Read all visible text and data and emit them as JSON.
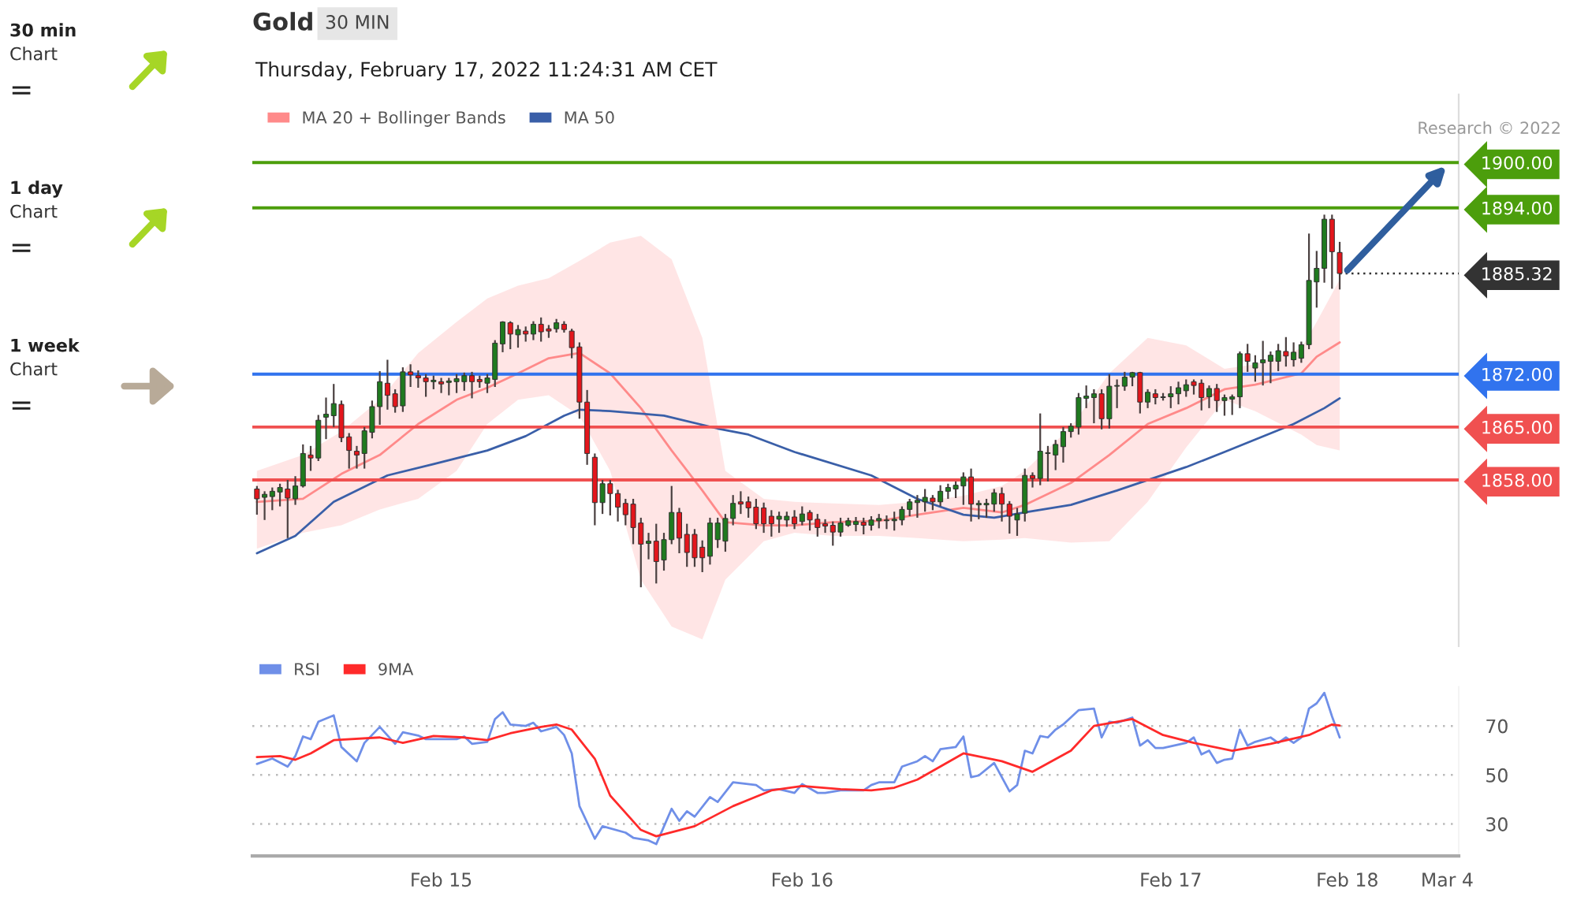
{
  "chart_data": [
    {
      "type": "candlestick",
      "title": "Gold",
      "subtitle": "Thursday, February 17, 2022 11:24:31 AM CET",
      "categories": [
        null,
        null,
        null,
        null,
        null,
        null,
        null,
        null,
        null,
        null,
        null,
        null,
        null,
        null,
        null,
        null,
        null,
        null,
        null,
        null,
        null,
        null,
        null,
        null,
        null,
        null,
        null,
        null,
        null,
        null,
        null,
        null,
        null,
        null,
        null,
        null,
        null,
        null,
        null,
        null,
        null,
        null,
        null,
        null,
        null,
        null,
        null,
        null,
        null,
        null,
        null,
        null,
        null,
        null,
        null,
        null,
        null,
        null,
        null,
        null,
        null,
        null,
        null,
        null,
        null,
        null,
        null,
        null,
        null,
        null,
        null,
        null,
        null,
        null,
        null,
        null,
        null,
        null,
        null,
        null,
        null,
        null,
        null,
        null,
        null,
        null,
        null,
        null,
        null,
        null,
        null,
        null,
        null,
        null,
        null,
        null,
        null,
        null,
        null,
        null,
        null,
        null,
        null,
        null,
        null,
        null,
        null,
        null,
        null,
        null,
        null,
        null,
        null,
        null,
        null,
        null,
        null,
        null,
        null,
        null,
        null,
        null,
        null,
        null,
        null,
        null,
        null,
        null,
        null,
        null,
        null,
        null,
        null,
        null,
        null,
        null,
        null,
        null,
        null,
        null,
        null,
        null,
        null,
        null,
        null,
        null,
        null,
        null,
        null,
        null,
        null,
        null,
        null,
        null,
        null,
        null,
        null
      ],
      "ohlc": [
        [
          1856.8,
          1857.2,
          1853.4,
          1855.5
        ],
        [
          1855.7,
          1856.5,
          1852.7,
          1856.1
        ],
        [
          1855.8,
          1857.0,
          1854.0,
          1856.5
        ],
        [
          1856.4,
          1857.5,
          1854.5,
          1857.0
        ],
        [
          1856.8,
          1858.0,
          1850.3,
          1855.6
        ],
        [
          1855.5,
          1858.5,
          1854.7,
          1857.2
        ],
        [
          1857.2,
          1862.7,
          1857.0,
          1861.5
        ],
        [
          1861.3,
          1862.5,
          1859.2,
          1860.9
        ],
        [
          1860.9,
          1866.6,
          1860.5,
          1865.9
        ],
        [
          1866.3,
          1868.9,
          1863.4,
          1866.7
        ],
        [
          1866.5,
          1870.7,
          1865.0,
          1868.1
        ],
        [
          1868.0,
          1868.5,
          1863.0,
          1863.6
        ],
        [
          1863.7,
          1864.2,
          1859.5,
          1861.9
        ],
        [
          1861.8,
          1862.5,
          1859.5,
          1861.3
        ],
        [
          1861.5,
          1865.0,
          1859.5,
          1864.5
        ],
        [
          1864.3,
          1868.5,
          1863.5,
          1867.7
        ],
        [
          1867.7,
          1872.4,
          1865.3,
          1871.0
        ],
        [
          1870.8,
          1873.9,
          1867.3,
          1869.2
        ],
        [
          1869.4,
          1870.0,
          1866.9,
          1867.7
        ],
        [
          1867.8,
          1872.9,
          1867.0,
          1872.3
        ],
        [
          1872.3,
          1873.3,
          1870.3,
          1871.9
        ],
        [
          1871.8,
          1872.5,
          1870.2,
          1871.5
        ],
        [
          1871.5,
          1872.0,
          1869.0,
          1871.0
        ],
        [
          1871.0,
          1871.8,
          1870.0,
          1871.2
        ],
        [
          1871.0,
          1871.5,
          1869.5,
          1870.7
        ],
        [
          1870.9,
          1871.5,
          1869.2,
          1871.1
        ],
        [
          1871.0,
          1872.0,
          1869.5,
          1871.4
        ],
        [
          1871.0,
          1872.2,
          1869.8,
          1871.8
        ],
        [
          1871.8,
          1872.3,
          1868.8,
          1871.0
        ],
        [
          1871.3,
          1871.8,
          1870.2,
          1871.0
        ],
        [
          1870.8,
          1872.0,
          1869.5,
          1871.5
        ],
        [
          1871.3,
          1876.5,
          1870.3,
          1876.1
        ],
        [
          1876.0,
          1879.0,
          1874.9,
          1878.9
        ],
        [
          1878.8,
          1879.0,
          1875.3,
          1877.3
        ],
        [
          1877.2,
          1878.5,
          1875.5,
          1877.9
        ],
        [
          1877.7,
          1878.3,
          1876.3,
          1877.3
        ],
        [
          1877.3,
          1879.0,
          1876.5,
          1878.6
        ],
        [
          1878.6,
          1879.5,
          1876.3,
          1877.6
        ],
        [
          1878.0,
          1878.5,
          1876.8,
          1877.7
        ],
        [
          1878.0,
          1879.3,
          1877.5,
          1878.8
        ],
        [
          1878.6,
          1879.0,
          1877.5,
          1877.9
        ],
        [
          1877.7,
          1878.0,
          1874.1,
          1875.5
        ],
        [
          1875.6,
          1876.2,
          1866.1,
          1868.3
        ],
        [
          1868.3,
          1869.9,
          1860.0,
          1861.5
        ],
        [
          1861.0,
          1861.5,
          1852.0,
          1855.0
        ],
        [
          1855.0,
          1858.0,
          1853.5,
          1857.5
        ],
        [
          1857.5,
          1858.0,
          1853.3,
          1856.2
        ],
        [
          1856.2,
          1856.7,
          1852.5,
          1854.4
        ],
        [
          1854.9,
          1855.5,
          1852.0,
          1853.4
        ],
        [
          1854.8,
          1855.5,
          1849.5,
          1851.7
        ],
        [
          1852.3,
          1853.0,
          1843.8,
          1849.5
        ],
        [
          1849.6,
          1851.0,
          1847.5,
          1849.9
        ],
        [
          1849.9,
          1852.2,
          1844.3,
          1847.2
        ],
        [
          1847.4,
          1851.0,
          1846.0,
          1850.1
        ],
        [
          1850.1,
          1857.2,
          1849.5,
          1853.7
        ],
        [
          1853.7,
          1854.3,
          1848.3,
          1850.3
        ],
        [
          1850.8,
          1852.2,
          1846.5,
          1848.4
        ],
        [
          1850.8,
          1851.5,
          1846.5,
          1847.7
        ],
        [
          1849.1,
          1850.0,
          1845.8,
          1847.7
        ],
        [
          1847.9,
          1853.0,
          1846.8,
          1852.3
        ],
        [
          1850.1,
          1853.0,
          1849.0,
          1852.3
        ],
        [
          1849.9,
          1853.5,
          1848.5,
          1852.9
        ],
        [
          1852.9,
          1856.0,
          1852.0,
          1854.9
        ],
        [
          1855.1,
          1856.5,
          1853.5,
          1854.8
        ],
        [
          1855.1,
          1855.8,
          1853.0,
          1854.3
        ],
        [
          1854.4,
          1855.5,
          1851.5,
          1852.2
        ],
        [
          1854.3,
          1855.0,
          1851.0,
          1852.2
        ],
        [
          1853.2,
          1854.0,
          1850.5,
          1852.2
        ],
        [
          1852.8,
          1853.8,
          1851.0,
          1853.2
        ],
        [
          1852.7,
          1853.8,
          1851.8,
          1853.2
        ],
        [
          1853.1,
          1854.0,
          1851.5,
          1852.2
        ],
        [
          1852.5,
          1854.5,
          1852.0,
          1853.5
        ],
        [
          1853.7,
          1854.0,
          1851.3,
          1852.7
        ],
        [
          1852.8,
          1853.5,
          1850.5,
          1851.7
        ],
        [
          1852.2,
          1852.8,
          1851.0,
          1851.9
        ],
        [
          1852.0,
          1852.5,
          1849.3,
          1851.1
        ],
        [
          1851.1,
          1853.0,
          1850.5,
          1852.3
        ],
        [
          1852.0,
          1853.0,
          1851.8,
          1852.6
        ],
        [
          1852.1,
          1853.1,
          1851.2,
          1852.5
        ],
        [
          1852.4,
          1853.0,
          1850.8,
          1852.0
        ],
        [
          1852.0,
          1853.2,
          1851.3,
          1852.7
        ],
        [
          1852.6,
          1853.5,
          1851.6,
          1852.9
        ],
        [
          1852.6,
          1853.3,
          1851.5,
          1852.7
        ],
        [
          1852.6,
          1853.8,
          1851.3,
          1852.8
        ],
        [
          1852.7,
          1854.5,
          1852.0,
          1854.1
        ],
        [
          1854.1,
          1855.5,
          1853.2,
          1855.1
        ],
        [
          1855.0,
          1856.0,
          1853.0,
          1855.3
        ],
        [
          1855.1,
          1856.8,
          1853.8,
          1855.7
        ],
        [
          1855.6,
          1856.0,
          1854.0,
          1855.1
        ],
        [
          1855.1,
          1857.3,
          1854.5,
          1856.5
        ],
        [
          1856.5,
          1857.5,
          1855.5,
          1857.0
        ],
        [
          1856.8,
          1857.8,
          1855.6,
          1857.3
        ],
        [
          1857.2,
          1859.0,
          1854.7,
          1858.4
        ],
        [
          1858.4,
          1859.5,
          1852.5,
          1854.8
        ],
        [
          1854.7,
          1855.3,
          1852.8,
          1854.9
        ],
        [
          1854.7,
          1855.5,
          1853.0,
          1854.9
        ],
        [
          1854.8,
          1856.8,
          1853.8,
          1856.3
        ],
        [
          1856.2,
          1857.0,
          1852.5,
          1854.8
        ],
        [
          1854.8,
          1855.2,
          1850.9,
          1853.2
        ],
        [
          1852.7,
          1854.3,
          1850.6,
          1853.5
        ],
        [
          1853.6,
          1859.5,
          1852.5,
          1858.6
        ],
        [
          1858.6,
          1859.0,
          1857.0,
          1858.2
        ],
        [
          1858.2,
          1866.8,
          1857.3,
          1861.8
        ],
        [
          1861.5,
          1862.5,
          1857.8,
          1861.6
        ],
        [
          1861.3,
          1863.3,
          1859.3,
          1862.7
        ],
        [
          1862.4,
          1865.0,
          1860.3,
          1864.4
        ],
        [
          1864.4,
          1865.5,
          1863.6,
          1865.1
        ],
        [
          1865.0,
          1869.5,
          1864.0,
          1868.9
        ],
        [
          1868.8,
          1870.5,
          1867.5,
          1869.1
        ],
        [
          1868.9,
          1870.0,
          1865.5,
          1869.4
        ],
        [
          1869.4,
          1870.0,
          1864.7,
          1866.1
        ],
        [
          1866.1,
          1872.0,
          1864.8,
          1870.4
        ],
        [
          1870.4,
          1871.3,
          1867.5,
          1870.5
        ],
        [
          1870.4,
          1872.3,
          1869.8,
          1871.6
        ],
        [
          1871.6,
          1872.3,
          1870.4,
          1872.2
        ],
        [
          1872.2,
          1872.3,
          1866.8,
          1868.3
        ],
        [
          1868.3,
          1870.0,
          1867.5,
          1869.6
        ],
        [
          1869.4,
          1870.0,
          1868.0,
          1868.9
        ],
        [
          1868.9,
          1869.5,
          1868.5,
          1869.0
        ],
        [
          1869.0,
          1870.4,
          1867.5,
          1869.4
        ],
        [
          1869.4,
          1871.0,
          1868.0,
          1870.2
        ],
        [
          1869.8,
          1871.3,
          1869.0,
          1870.6
        ],
        [
          1871.0,
          1871.3,
          1869.3,
          1870.5
        ],
        [
          1870.8,
          1871.3,
          1867.2,
          1868.9
        ],
        [
          1869.0,
          1870.5,
          1867.5,
          1870.1
        ],
        [
          1870.1,
          1870.7,
          1867.0,
          1868.5
        ],
        [
          1868.5,
          1869.3,
          1866.5,
          1868.9
        ],
        [
          1868.7,
          1869.3,
          1866.6,
          1869.0
        ],
        [
          1869.0,
          1875.0,
          1867.5,
          1874.7
        ],
        [
          1874.7,
          1876.0,
          1872.3,
          1873.7
        ],
        [
          1872.8,
          1874.5,
          1871.0,
          1873.5
        ],
        [
          1873.5,
          1876.4,
          1870.5,
          1873.9
        ],
        [
          1873.7,
          1875.0,
          1870.8,
          1874.5
        ],
        [
          1873.7,
          1876.0,
          1872.4,
          1875.1
        ],
        [
          1875.0,
          1876.9,
          1873.0,
          1874.4
        ],
        [
          1873.9,
          1876.2,
          1873.0,
          1874.9
        ],
        [
          1874.1,
          1876.3,
          1873.5,
          1875.9
        ],
        [
          1875.9,
          1890.6,
          1875.3,
          1884.4
        ],
        [
          1884.2,
          1888.3,
          1880.8,
          1886.0
        ],
        [
          1886.0,
          1893.1,
          1884.1,
          1892.5
        ],
        [
          1892.5,
          1893.1,
          1883.3,
          1888.2
        ],
        [
          1888.1,
          1889.5,
          1883.2,
          1885.32
        ],
        null,
        null,
        null,
        null,
        null,
        null,
        null,
        null,
        null,
        null,
        null,
        null,
        null,
        null,
        null
      ],
      "series": [
        {
          "name": "MA 20 + Bollinger Bands",
          "type": "line",
          "color": "#ff8a8a",
          "values": [
            1855.1,
            null,
            null,
            null,
            null,
            null,
            1855.5,
            null,
            null,
            null,
            null,
            1858.8,
            null,
            null,
            null,
            null,
            1861.3,
            null,
            null,
            null,
            null,
            1865.4,
            null,
            null,
            null,
            null,
            1868.6,
            null,
            null,
            null,
            1870.2,
            null,
            null,
            null,
            1872.1,
            null,
            null,
            null,
            1874.1,
            null,
            null,
            null,
            1874.8,
            null,
            null,
            null,
            1872.1,
            null,
            null,
            null,
            1867.5,
            null,
            null,
            null,
            1861.9,
            null,
            null,
            null,
            1856.6,
            null,
            null,
            1852.4,
            null,
            null,
            null,
            null,
            1852.0,
            null,
            null,
            null,
            1852.0,
            null,
            null,
            null,
            null,
            1852.4,
            null,
            null,
            null,
            null,
            null,
            1852.6,
            null,
            null,
            null,
            null,
            1853.4,
            null,
            null,
            null,
            null,
            null,
            1854.3,
            null,
            null,
            null,
            null,
            1853.7,
            null,
            null,
            1854.7,
            null,
            null,
            null,
            null,
            null,
            1857.6,
            null,
            null,
            null,
            null,
            1861.3,
            null,
            null,
            null,
            null,
            1865.4,
            null,
            null,
            null,
            null,
            1867.5,
            null,
            null,
            null,
            null,
            1870.0,
            null,
            null,
            null,
            1870.6,
            null,
            null,
            null,
            null,
            null,
            1872.1,
            null,
            1874.3,
            null,
            null,
            1876.2,
            null,
            null,
            null,
            null,
            null,
            null,
            null,
            null,
            null,
            null,
            null,
            null,
            null,
            null,
            null
          ],
          "upper": [
            1859.2,
            null,
            null,
            null,
            null,
            null,
            1861.3,
            null,
            null,
            null,
            null,
            1864.4,
            null,
            null,
            null,
            null,
            1868.6,
            null,
            null,
            null,
            null,
            1874.8,
            null,
            null,
            null,
            null,
            1878.9,
            null,
            null,
            null,
            1882.0,
            null,
            null,
            null,
            1883.7,
            null,
            null,
            null,
            1884.7,
            null,
            null,
            null,
            1887.0,
            null,
            null,
            null,
            1889.4,
            null,
            null,
            null,
            1890.3,
            null,
            null,
            null,
            1887.2,
            null,
            null,
            null,
            1876.8,
            null,
            null,
            1859.2,
            null,
            null,
            null,
            null,
            1855.5,
            null,
            null,
            null,
            1855.1,
            null,
            null,
            null,
            null,
            1854.9,
            null,
            null,
            null,
            null,
            null,
            1854.7,
            null,
            null,
            null,
            null,
            1855.1,
            null,
            null,
            null,
            null,
            null,
            1855.9,
            null,
            null,
            null,
            null,
            1857.2,
            null,
            null,
            1859.2,
            null,
            null,
            null,
            null,
            null,
            1865.0,
            null,
            null,
            null,
            null,
            1872.1,
            null,
            null,
            null,
            null,
            1876.8,
            null,
            null,
            null,
            null,
            1875.8,
            null,
            null,
            null,
            null,
            1872.7,
            null,
            null,
            null,
            1873.3,
            null,
            null,
            null,
            null,
            null,
            1875.4,
            null,
            1878.9,
            null,
            null,
            1884.5,
            null,
            null,
            null,
            null,
            null,
            null,
            null,
            null,
            null,
            null,
            null,
            null,
            null,
            null,
            null
          ],
          "lower": [
            1848.9,
            null,
            null,
            null,
            null,
            null,
            1851.0,
            null,
            null,
            null,
            null,
            1852.0,
            null,
            null,
            null,
            null,
            1854.1,
            null,
            null,
            null,
            null,
            1855.5,
            null,
            null,
            null,
            null,
            1859.2,
            null,
            null,
            null,
            1865.4,
            null,
            null,
            null,
            1868.6,
            null,
            null,
            null,
            1869.2,
            null,
            null,
            null,
            1866.5,
            null,
            null,
            null,
            1859.2,
            null,
            null,
            null,
            1844.8,
            null,
            null,
            null,
            1838.6,
            null,
            null,
            null,
            1836.9,
            null,
            null,
            1844.8,
            null,
            null,
            null,
            null,
            1849.9,
            null,
            null,
            null,
            1851.0,
            null,
            null,
            null,
            null,
            1850.6,
            null,
            null,
            null,
            null,
            null,
            1850.6,
            null,
            null,
            null,
            null,
            1850.3,
            null,
            null,
            null,
            null,
            null,
            1849.9,
            null,
            null,
            null,
            null,
            1850.1,
            null,
            null,
            1850.3,
            null,
            null,
            null,
            null,
            null,
            1849.7,
            null,
            null,
            null,
            null,
            1849.9,
            null,
            null,
            null,
            null,
            1855.1,
            null,
            null,
            null,
            null,
            1862.3,
            null,
            null,
            null,
            null,
            1868.6,
            null,
            null,
            null,
            1867.1,
            null,
            null,
            null,
            null,
            null,
            1864.0,
            null,
            1862.6,
            null,
            null,
            1861.9,
            null,
            null,
            null,
            null,
            null,
            null,
            null,
            null,
            null,
            null,
            null,
            null,
            null,
            null,
            null
          ]
        },
        {
          "name": "MA 50",
          "type": "line",
          "color": "#3a5fa8",
          "values": [
            1848.3,
            null,
            null,
            null,
            null,
            1850.6,
            null,
            null,
            null,
            null,
            1855.1,
            null,
            null,
            null,
            null,
            null,
            null,
            1858.6,
            null,
            null,
            null,
            null,
            null,
            1860.1,
            null,
            null,
            null,
            null,
            null,
            null,
            1861.9,
            null,
            null,
            null,
            null,
            1863.8,
            null,
            null,
            null,
            null,
            1866.5,
            null,
            1867.3,
            null,
            null,
            null,
            1867.1,
            null,
            null,
            null,
            null,
            null,
            null,
            1866.5,
            null,
            null,
            null,
            null,
            null,
            null,
            1864.8,
            null,
            null,
            null,
            1864.0,
            null,
            null,
            null,
            null,
            null,
            1861.7,
            null,
            null,
            null,
            null,
            null,
            null,
            null,
            null,
            null,
            1858.6,
            null,
            null,
            null,
            null,
            null,
            1855.5,
            null,
            null,
            null,
            null,
            null,
            1853.4,
            null,
            null,
            null,
            1853.0,
            null,
            null,
            null,
            1853.7,
            null,
            null,
            null,
            null,
            null,
            1854.7,
            null,
            null,
            null,
            null,
            null,
            1856.6,
            null,
            null,
            null,
            null,
            null,
            null,
            null,
            null,
            1859.7,
            null,
            null,
            null,
            null,
            1861.7,
            null,
            null,
            null,
            null,
            null,
            null,
            null,
            null,
            1865.4,
            null,
            null,
            null,
            1867.5,
            null,
            1868.8,
            null,
            null,
            null,
            null,
            null,
            null,
            null,
            null,
            null,
            null,
            null,
            null,
            null,
            null,
            null
          ]
        }
      ],
      "ylim": [
        1836,
        1909
      ],
      "tick_labels": "y",
      "legend": "top left",
      "yticks": [
        {
          "value": 1858,
          "label": "1858.00"
        },
        {
          "value": 1865,
          "label": "1865.00"
        },
        {
          "value": 1872,
          "label": "1872.00"
        },
        {
          "value": 1885.32,
          "label": "1885.32"
        },
        {
          "value": 1894,
          "label": "1894.00"
        },
        {
          "value": 1900,
          "label": "1900.00"
        }
      ],
      "ref_lines": [
        {
          "axis": "y",
          "value": 1900,
          "color": "#4c9e0c"
        },
        {
          "axis": "y",
          "value": 1894,
          "color": "#4c9e0c"
        },
        {
          "axis": "y",
          "value": 1872,
          "color": "#3173ee"
        },
        {
          "axis": "y",
          "value": 1865,
          "color": "#f05050"
        },
        {
          "axis": "y",
          "value": 1858,
          "color": "#f05050"
        },
        {
          "axis": "y",
          "value": 1885.32,
          "color": "#333333",
          "line_style": "dotted"
        }
      ],
      "annotations": [
        "30 MIN",
        "Research © 2022"
      ]
    },
    {
      "type": "line",
      "categories": [
        null,
        null,
        null,
        null,
        null,
        null,
        null,
        null,
        null,
        null,
        null,
        null,
        null,
        null,
        null,
        null,
        null,
        null,
        null,
        null,
        null,
        null,
        null,
        null,
        "Feb 15",
        null,
        null,
        null,
        null,
        null,
        null,
        null,
        null,
        null,
        null,
        null,
        null,
        null,
        null,
        null,
        null,
        null,
        null,
        null,
        null,
        null,
        null,
        null,
        null,
        null,
        null,
        null,
        null,
        null,
        null,
        null,
        null,
        null,
        null,
        null,
        null,
        null,
        null,
        null,
        null,
        null,
        null,
        null,
        null,
        null,
        null,
        "Feb 16",
        null,
        null,
        null,
        null,
        null,
        null,
        null,
        null,
        null,
        null,
        null,
        null,
        null,
        null,
        null,
        null,
        null,
        null,
        null,
        null,
        null,
        null,
        null,
        null,
        null,
        null,
        null,
        null,
        null,
        null,
        null,
        null,
        null,
        null,
        null,
        null,
        null,
        null,
        null,
        null,
        null,
        null,
        null,
        null,
        null,
        null,
        null,
        "Feb 17",
        null,
        null,
        null,
        null,
        null,
        null,
        null,
        null,
        null,
        null,
        null,
        null,
        null,
        null,
        null,
        null,
        null,
        null,
        null,
        null,
        null,
        null,
        "Feb 18",
        null,
        null,
        null,
        null,
        null,
        null,
        null,
        null,
        null,
        null,
        null,
        null,
        "Mar 4",
        null
      ],
      "series": [
        {
          "name": "RSI",
          "color": "#6f8fe8",
          "values": [
            54.5,
            null,
            56.7,
            null,
            53.4,
            57.7,
            65.7,
            64.6,
            71.7,
            null,
            74.3,
            61.4,
            null,
            55.6,
            63.1,
            null,
            69.6,
            null,
            62.7,
            67.4,
            null,
            66.1,
            64.6,
            null,
            null,
            null,
            64.6,
            65.7,
            62.7,
            null,
            63.5,
            72.8,
            75.6,
            70.6,
            null,
            70.0,
            71.3,
            67.8,
            null,
            69.6,
            66.3,
            58.8,
            37.3,
            null,
            24.0,
            29.1,
            null,
            null,
            26.5,
            24.4,
            null,
            23.3,
            21.8,
            null,
            36.2,
            31.3,
            35.2,
            33.0,
            null,
            41.0,
            39.0,
            null,
            47.0,
            null,
            null,
            45.9,
            43.7,
            null,
            44.2,
            null,
            42.7,
            46.3,
            null,
            42.7,
            42.7,
            null,
            43.7,
            null,
            null,
            43.7,
            45.9,
            47.0,
            null,
            47.0,
            53.4,
            null,
            55.6,
            57.7,
            55.6,
            60.5,
            null,
            61.4,
            65.7,
            49.1,
            49.8,
            null,
            54.9,
            49.1,
            43.3,
            45.9,
            59.9,
            58.8,
            65.9,
            65.3,
            68.5,
            70.6,
            null,
            76.4,
            null,
            77.1,
            65.3,
            71.7,
            71.3,
            null,
            73.4,
            62.0,
            64.2,
            61.0,
            61.0,
            null,
            null,
            63.1,
            65.3,
            58.4,
            59.9,
            54.9,
            56.2,
            56.7,
            68.5,
            62.0,
            63.5,
            null,
            65.3,
            63.1,
            65.3,
            63.1,
            65.3,
            77.1,
            79.2,
            83.5,
            73.9,
            65.3,
            null,
            null,
            null,
            null,
            null,
            null,
            null,
            null,
            null,
            null,
            null,
            null,
            null,
            null,
            null
          ]
        },
        {
          "name": "9MA",
          "color": "#ff2a2a",
          "values": [
            57.3,
            null,
            null,
            57.7,
            null,
            56.2,
            null,
            58.8,
            null,
            null,
            64.2,
            null,
            null,
            null,
            null,
            null,
            65.3,
            null,
            null,
            63.1,
            null,
            null,
            null,
            65.9,
            null,
            null,
            null,
            65.3,
            null,
            null,
            64.2,
            null,
            null,
            67.0,
            null,
            null,
            null,
            69.6,
            null,
            70.6,
            null,
            68.5,
            null,
            null,
            56.6,
            null,
            41.6,
            null,
            null,
            null,
            27.6,
            null,
            25.0,
            null,
            null,
            null,
            null,
            29.1,
            null,
            null,
            null,
            null,
            37.3,
            null,
            null,
            null,
            null,
            43.7,
            null,
            null,
            null,
            45.5,
            null,
            null,
            null,
            null,
            44.2,
            null,
            null,
            null,
            43.7,
            null,
            null,
            44.8,
            null,
            null,
            48.1,
            null,
            null,
            null,
            null,
            null,
            58.8,
            null,
            null,
            null,
            null,
            55.6,
            null,
            null,
            null,
            51.3,
            null,
            null,
            null,
            null,
            59.9,
            null,
            null,
            70.0,
            null,
            null,
            null,
            null,
            72.8,
            null,
            null,
            null,
            66.3,
            null,
            null,
            null,
            63.1,
            null,
            null,
            null,
            null,
            59.9,
            null,
            null,
            null,
            null,
            62.7,
            null,
            null,
            null,
            null,
            66.3,
            null,
            null,
            70.6,
            70.2,
            null,
            null,
            null,
            null,
            null,
            null,
            null,
            null,
            null,
            null,
            null,
            null,
            null,
            null,
            null
          ]
        }
      ],
      "ylim": [
        17,
        86
      ],
      "yticks": [
        30,
        50,
        70
      ],
      "grid": "y",
      "legend": "top left"
    },
    {
      "type": "other",
      "annotations": [
        "30 min",
        "Chart",
        "=",
        "1 day",
        "Chart",
        "=",
        "1 week",
        "Chart",
        "="
      ]
    }
  ]
}
